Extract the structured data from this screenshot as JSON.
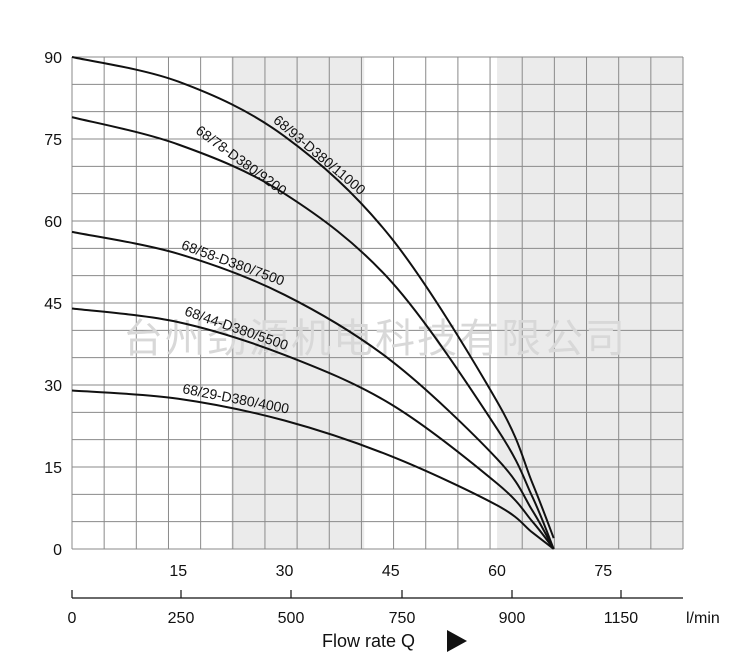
{
  "watermark": "台州劲源机电科技有限公司",
  "chart_data": {
    "type": "line",
    "xlim": [
      0,
      86.25
    ],
    "ylim": [
      0,
      90
    ],
    "grid": true,
    "shaded_bands": [
      [
        22.5,
        41.25
      ],
      [
        60,
        86.25
      ]
    ],
    "yticks": [
      0,
      15,
      30,
      45,
      60,
      75,
      90
    ],
    "xticks_top": [
      15,
      30,
      45,
      60,
      75
    ],
    "xticks_bottom": {
      "values": [
        0,
        250,
        500,
        750,
        900,
        1150
      ],
      "labels": [
        "0",
        "250",
        "500",
        "750",
        "900",
        "1150"
      ],
      "unit": "l/min"
    },
    "xlabel": "Flow rate Q",
    "series": [
      {
        "name": "68/93-D380/11000",
        "x": [
          0,
          15,
          30,
          45,
          60,
          65,
          68
        ],
        "y": [
          90,
          85.5,
          75.5,
          57,
          27,
          12,
          2
        ]
      },
      {
        "name": "68/78-D380/9200",
        "x": [
          0,
          15,
          30,
          45,
          60,
          65,
          68
        ],
        "y": [
          79,
          74,
          65,
          49,
          22,
          9.5,
          0
        ]
      },
      {
        "name": "68/58-D380/7500",
        "x": [
          0,
          15,
          30,
          45,
          60,
          65,
          68
        ],
        "y": [
          58,
          54,
          46.5,
          34.5,
          16.5,
          7,
          0
        ]
      },
      {
        "name": "68/44-D380/5500",
        "x": [
          0,
          15,
          30,
          45,
          60,
          65,
          68
        ],
        "y": [
          44,
          41.5,
          35.5,
          26.5,
          12,
          5,
          0
        ]
      },
      {
        "name": "68/29-D380/4000",
        "x": [
          0,
          15,
          30,
          45,
          60,
          65,
          68
        ],
        "y": [
          29,
          27.5,
          23.5,
          17,
          8,
          3,
          0
        ]
      }
    ]
  }
}
